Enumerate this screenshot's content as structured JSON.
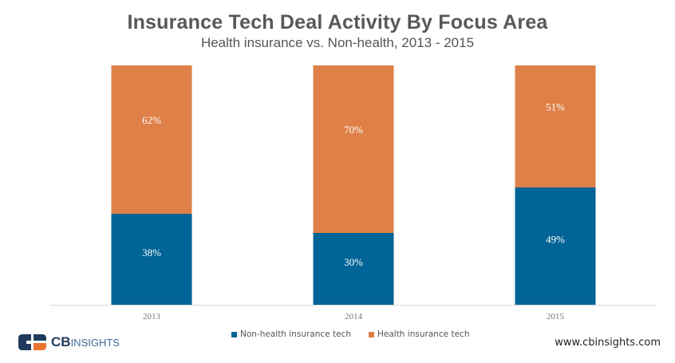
{
  "chart_data": {
    "type": "bar",
    "stacked": true,
    "title": "Insurance Tech Deal Activity By Focus Area",
    "subtitle": "Health insurance vs. Non-health, 2013 - 2015",
    "xlabel": "",
    "ylabel": "",
    "ylim": [
      0,
      100
    ],
    "grid": false,
    "legend_position": "bottom",
    "categories": [
      "2013",
      "2014",
      "2015"
    ],
    "series": [
      {
        "name": "Non-health insurance tech",
        "color": "#006497",
        "values": [
          38,
          30,
          49
        ],
        "labels": [
          "38%",
          "30%",
          "49%"
        ]
      },
      {
        "name": "Health insurance tech",
        "color": "#DE8048",
        "values": [
          62,
          70,
          51
        ],
        "labels": [
          "62%",
          "70%",
          "51%"
        ]
      }
    ]
  },
  "branding": {
    "logo_cb": "CB",
    "logo_insights": "INSIGHTS",
    "url": "www.cbinsights.com"
  }
}
